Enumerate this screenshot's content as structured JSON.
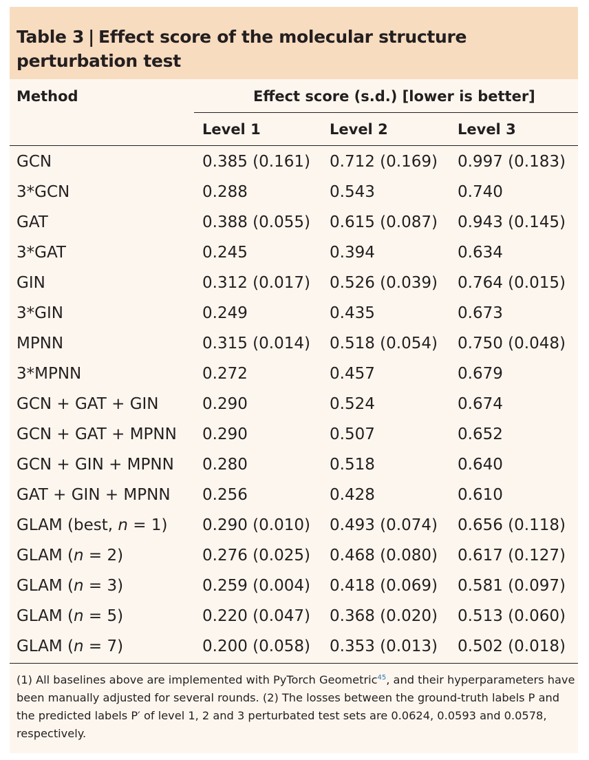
{
  "title": {
    "label": "Table 3",
    "separator": "|",
    "text": "Effect score of the molecular structure perturbation test"
  },
  "header": {
    "method": "Method",
    "group": "Effect score (s.d.) [lower is better]",
    "levels": [
      "Level 1",
      "Level 2",
      "Level 3"
    ]
  },
  "rows": [
    {
      "method": "GCN",
      "l1": "0.385 (0.161)",
      "l2": "0.712 (0.169)",
      "l3": "0.997 (0.183)"
    },
    {
      "method": "3*GCN",
      "l1": "0.288",
      "l2": "0.543",
      "l3": "0.740"
    },
    {
      "method": "GAT",
      "l1": "0.388 (0.055)",
      "l2": "0.615 (0.087)",
      "l3": "0.943 (0.145)"
    },
    {
      "method": "3*GAT",
      "l1": "0.245",
      "l2": "0.394",
      "l3": "0.634"
    },
    {
      "method": "GIN",
      "l1": "0.312 (0.017)",
      "l2": "0.526 (0.039)",
      "l3": "0.764 (0.015)"
    },
    {
      "method": "3*GIN",
      "l1": "0.249",
      "l2": "0.435",
      "l3": "0.673"
    },
    {
      "method": "MPNN",
      "l1": "0.315 (0.014)",
      "l2": "0.518 (0.054)",
      "l3": "0.750 (0.048)"
    },
    {
      "method": "3*MPNN",
      "l1": "0.272",
      "l2": "0.457",
      "l3": "0.679"
    },
    {
      "method": "GCN + GAT + GIN",
      "l1": "0.290",
      "l2": "0.524",
      "l3": "0.674"
    },
    {
      "method": "GCN + GAT + MPNN",
      "l1": "0.290",
      "l2": "0.507",
      "l3": "0.652"
    },
    {
      "method": "GCN + GIN + MPNN",
      "l1": "0.280",
      "l2": "0.518",
      "l3": "0.640"
    },
    {
      "method": "GAT + GIN + MPNN",
      "l1": "0.256",
      "l2": "0.428",
      "l3": "0.610"
    },
    {
      "method": "GLAM (best, n = 1)",
      "l1": "0.290 (0.010)",
      "l2": "0.493 (0.074)",
      "l3": "0.656 (0.118)"
    },
    {
      "method": "GLAM (n = 2)",
      "l1": "0.276 (0.025)",
      "l2": "0.468 (0.080)",
      "l3": "0.617 (0.127)"
    },
    {
      "method": "GLAM (n = 3)",
      "l1": "0.259 (0.004)",
      "l2": "0.418 (0.069)",
      "l3": "0.581 (0.097)"
    },
    {
      "method": "GLAM (n = 5)",
      "l1": "0.220 (0.047)",
      "l2": "0.368 (0.020)",
      "l3": "0.513 (0.060)"
    },
    {
      "method": "GLAM (n = 7)",
      "l1": "0.200 (0.058)",
      "l2": "0.353 (0.013)",
      "l3": "0.502 (0.018)"
    }
  ],
  "footnote": {
    "part1": "(1) All baselines above are implemented with PyTorch Geometric",
    "ref": "45",
    "part2": ", and their hyperparameters have been manually adjusted for several rounds. (2) The losses between the ground-truth labels P and the predicted labels P′ of level 1, 2 and 3 perturbated test sets are 0.0624, 0.0593 and 0.0578, respectively."
  },
  "colors": {
    "title_background": "#f8dcc0",
    "panel_background": "#fdf6ee",
    "text": "#231f20",
    "reference_link": "#2a7ab8"
  }
}
